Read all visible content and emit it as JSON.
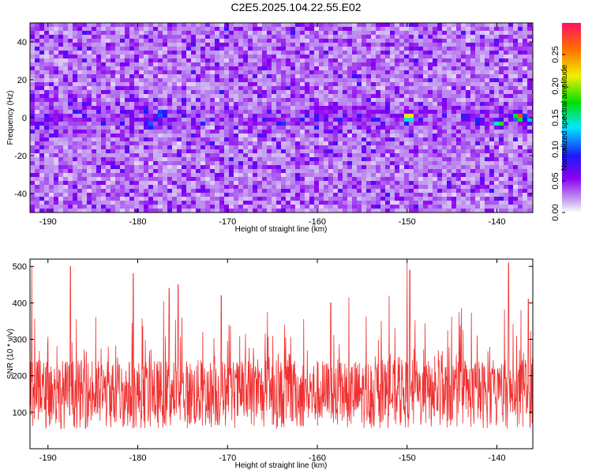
{
  "title": "C2E5.2025.104.22.55.E02",
  "chart_data": [
    {
      "type": "heatmap",
      "xlabel": "Height of straight line (km)",
      "ylabel": "Frequency (Hz)",
      "xlim": [
        -192,
        -136
      ],
      "ylim": [
        -50,
        50
      ],
      "xticks": [
        -190,
        -180,
        -170,
        -160,
        -150,
        -140
      ],
      "yticks": [
        -40,
        -20,
        0,
        20,
        40
      ],
      "colorbar": {
        "label": "Normalized spectral amplitude",
        "ticks": [
          "0.00",
          "0.05",
          "0.10",
          "0.15",
          "0.20",
          "0.25"
        ],
        "range": [
          0,
          0.3
        ]
      },
      "hotspots": [
        {
          "x": -149.8,
          "y": 0.5,
          "value": 0.28
        },
        {
          "x": -137.5,
          "y": 0.5,
          "value": 0.3
        },
        {
          "x": -139.7,
          "y": -3,
          "value": 0.2
        },
        {
          "x": -177.3,
          "y": 2,
          "value": 0.14
        },
        {
          "x": -178.7,
          "y": -4,
          "value": 0.13
        },
        {
          "x": -136.5,
          "y": -1.5,
          "value": 0.14
        },
        {
          "x": -142,
          "y": -2,
          "value": 0.12
        },
        {
          "x": -164,
          "y": -3,
          "value": 0.11
        },
        {
          "x": -160,
          "y": 0,
          "value": 0.1
        }
      ],
      "background_level": 0.04
    },
    {
      "type": "line",
      "xlabel": "Height of straight line (km)",
      "ylabel": "SNR (10 * v/v)",
      "xlim": [
        -192,
        -136
      ],
      "ylim": [
        0,
        520
      ],
      "xticks": [
        -190,
        -180,
        -170,
        -160,
        -150,
        -140
      ],
      "yticks": [
        100,
        200,
        300,
        400,
        500
      ],
      "series_color": "#f03030",
      "baseline_mean": 150,
      "spikes": [
        {
          "x": -191.8,
          "y": 500
        },
        {
          "x": -187.5,
          "y": 500
        },
        {
          "x": -180.5,
          "y": 480
        },
        {
          "x": -176.5,
          "y": 440
        },
        {
          "x": -175.5,
          "y": 450
        },
        {
          "x": -150.0,
          "y": 510
        },
        {
          "x": -149.7,
          "y": 490
        },
        {
          "x": -138.7,
          "y": 510
        },
        {
          "x": -136.5,
          "y": 410
        },
        {
          "x": -170.7,
          "y": 420
        },
        {
          "x": -152.0,
          "y": 420
        },
        {
          "x": -158.5,
          "y": 400
        }
      ]
    }
  ]
}
